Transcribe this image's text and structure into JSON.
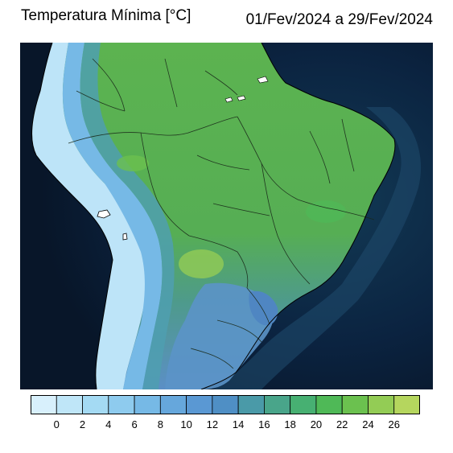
{
  "header": {
    "title": "Temperatura Mínima [°C]",
    "period": "01/Fev/2024 a 29/Fev/2024"
  },
  "legend": {
    "ticks": [
      "0",
      "2",
      "4",
      "6",
      "8",
      "10",
      "12",
      "14",
      "16",
      "18",
      "20",
      "22",
      "24",
      "26"
    ],
    "colors": [
      "#d8f0fc",
      "#bfe6f8",
      "#a4daf3",
      "#8ecbee",
      "#76b9e6",
      "#66a7dc",
      "#5a98d3",
      "#4f8fc5",
      "#4a9aa8",
      "#49a58a",
      "#47b072",
      "#4fb957",
      "#6bc14f",
      "#93cc55",
      "#b5d65e"
    ],
    "level_min": -2,
    "level_step": 2
  },
  "map": {
    "ocean_color": "#0c1a33",
    "land_color": "#56b054",
    "coast_cold_color": "#bde4f8",
    "region": "South America"
  }
}
